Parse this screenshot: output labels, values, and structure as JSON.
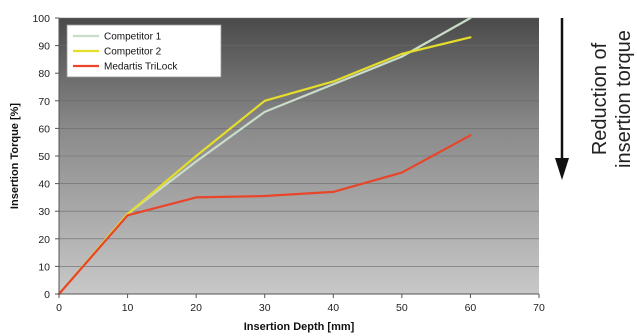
{
  "chart_data": {
    "type": "line",
    "xlabel": "Insertion Depth [mm]",
    "ylabel": "Insertion Torque [%]",
    "xlim": [
      0,
      70
    ],
    "ylim": [
      0,
      100
    ],
    "xticks": [
      0,
      10,
      20,
      30,
      40,
      50,
      60,
      70
    ],
    "yticks": [
      0,
      10,
      20,
      30,
      40,
      50,
      60,
      70,
      80,
      90,
      100
    ],
    "legend_position": "top-left",
    "background": "gray-gradient",
    "series": [
      {
        "name": "Competitor 1",
        "color": "#c9dcc9",
        "x": [
          0,
          10,
          20,
          30,
          40,
          50,
          60
        ],
        "y": [
          0,
          29,
          48,
          66,
          76,
          86,
          100
        ]
      },
      {
        "name": "Competitor 2",
        "color": "#e4dd2a",
        "x": [
          0,
          10,
          20,
          30,
          40,
          50,
          60
        ],
        "y": [
          0,
          29,
          50,
          70,
          77,
          87,
          93
        ]
      },
      {
        "name": "Medartis TriLock",
        "color": "#e8452a",
        "x": [
          0,
          10,
          20,
          30,
          40,
          50,
          60
        ],
        "y": [
          0,
          28.5,
          35,
          35.5,
          37,
          44,
          57.5
        ]
      }
    ]
  },
  "annotation": {
    "line1": "Reduction of",
    "line2": "insertion torque"
  }
}
